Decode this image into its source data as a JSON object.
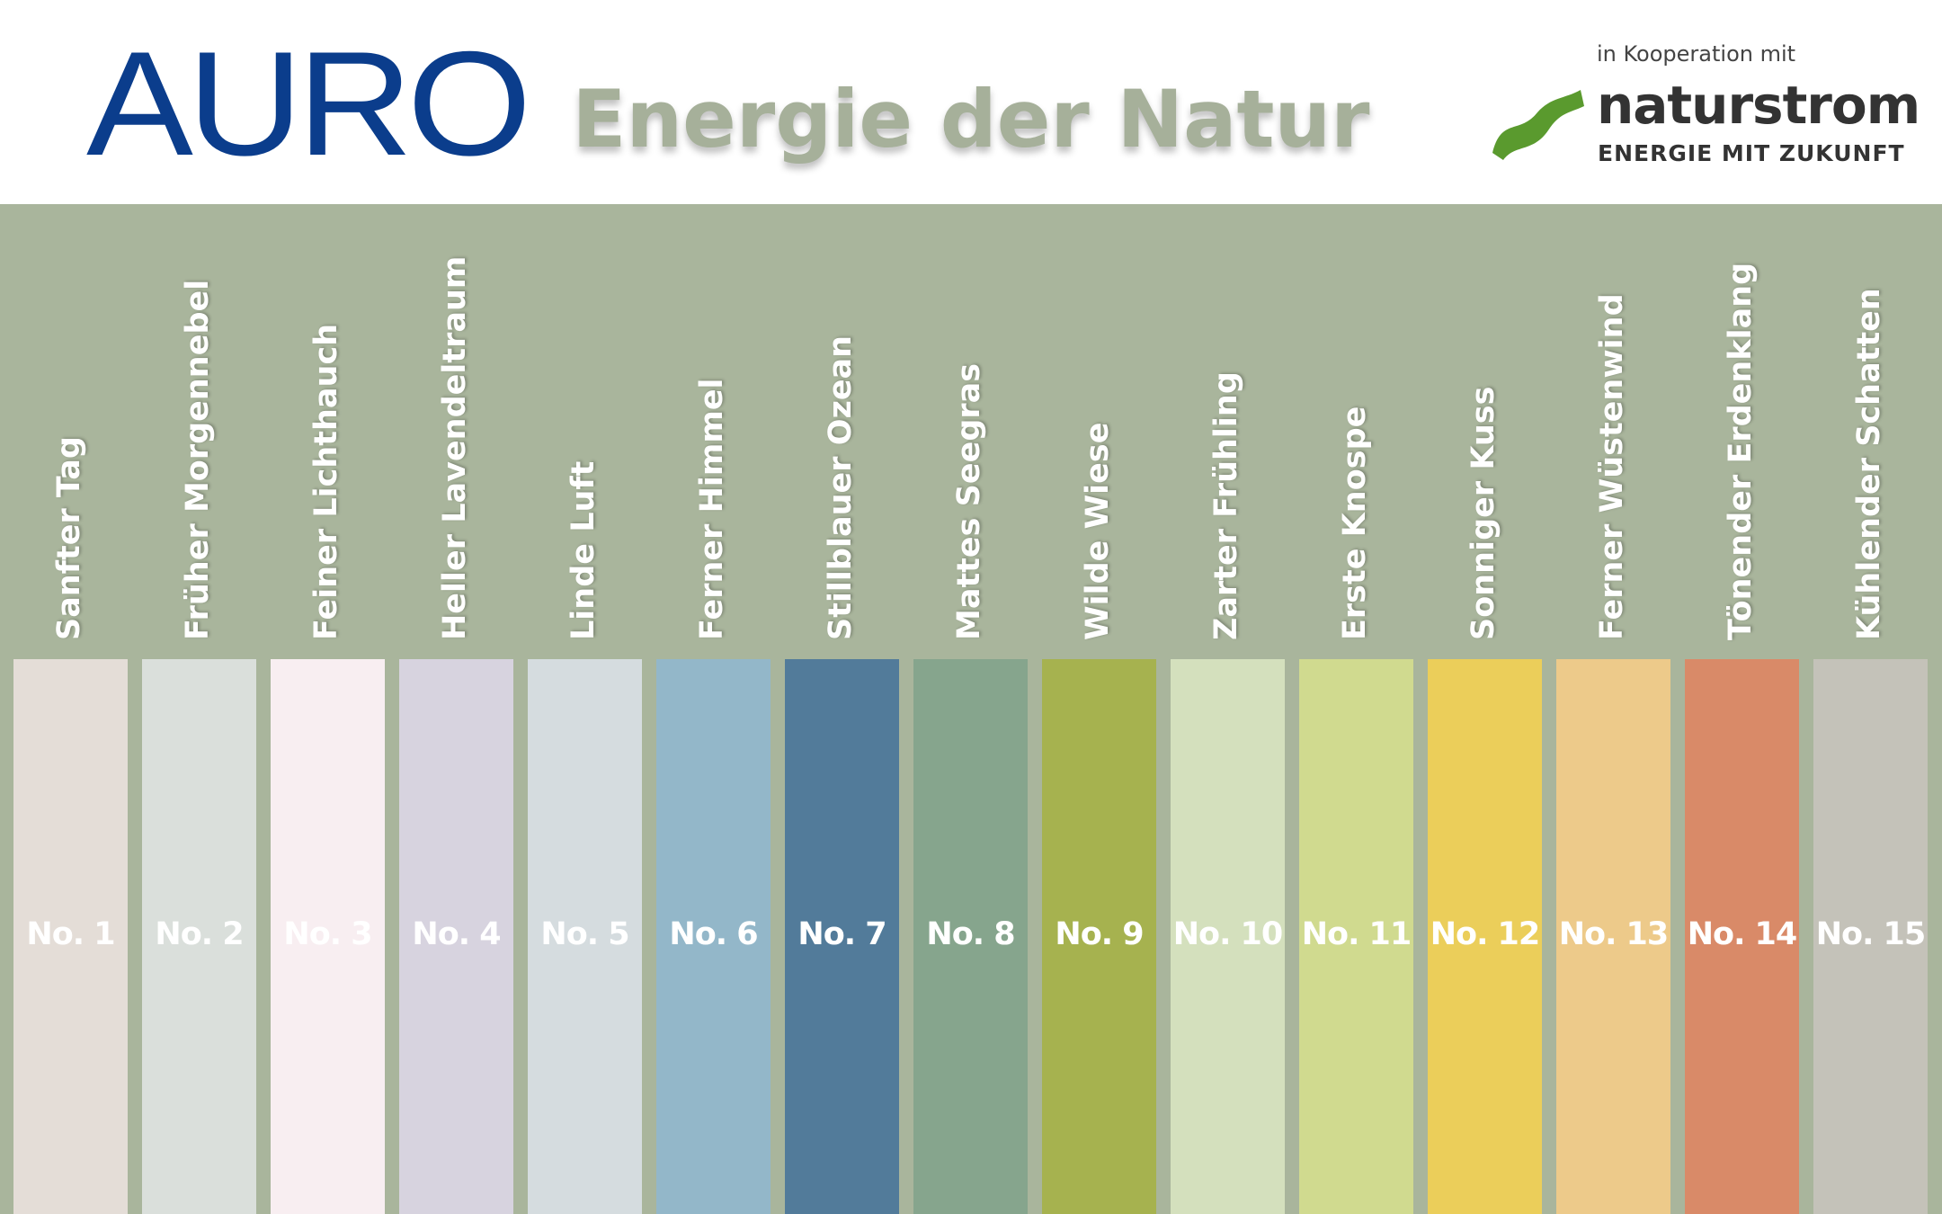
{
  "header": {
    "logo": "AURO",
    "title": "Energie der Natur",
    "cooperation": "in Kooperation mit",
    "partner_name": "naturstrom",
    "partner_tagline": "Energie mit Zukunft"
  },
  "colors": {
    "band": "#a9b59c",
    "title": "#a6b09a",
    "logo": "#0b3d8c",
    "partner_mark": "#5a9a2e"
  },
  "swatches": [
    {
      "name": "Sanfter Tag",
      "label": "No. 1",
      "color": "#e4ddd7"
    },
    {
      "name": "Früher Morgennebel",
      "label": "No. 2",
      "color": "#dadfdb"
    },
    {
      "name": "Feiner Lichthauch",
      "label": "No. 3",
      "color": "#f8eef1"
    },
    {
      "name": "Heller Lavendeltraum",
      "label": "No. 4",
      "color": "#d7d3df"
    },
    {
      "name": "Linde Luft",
      "label": "No. 5",
      "color": "#d5dcdf"
    },
    {
      "name": "Ferner Himmel",
      "label": "No. 6",
      "color": "#93b7c9"
    },
    {
      "name": "Stillblauer Ozean",
      "label": "No. 7",
      "color": "#527b9a"
    },
    {
      "name": "Mattes Seegras",
      "label": "No. 8",
      "color": "#86a58d"
    },
    {
      "name": "Wilde Wiese",
      "label": "No. 9",
      "color": "#a6b24f"
    },
    {
      "name": "Zarter Frühling",
      "label": "No. 10",
      "color": "#d4e0bd"
    },
    {
      "name": "Erste Knospe",
      "label": "No. 11",
      "color": "#d0da8f"
    },
    {
      "name": "Sonniger Kuss",
      "label": "No. 12",
      "color": "#ebce5a"
    },
    {
      "name": "Ferner Wüstenwind",
      "label": "No. 13",
      "color": "#edca8a"
    },
    {
      "name": "Tönender Erdenklang",
      "label": "No. 14",
      "color": "#d98a68"
    },
    {
      "name": "Kühlender Schatten",
      "label": "No. 15",
      "color": "#c4c2b9"
    }
  ]
}
